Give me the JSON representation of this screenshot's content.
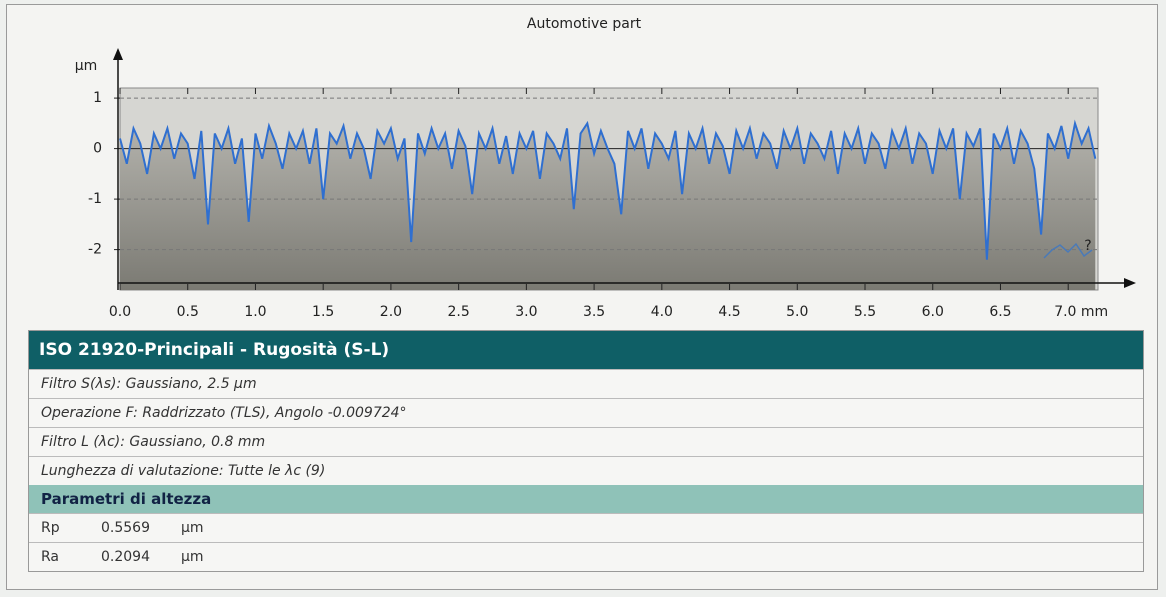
{
  "chart_data": {
    "type": "line",
    "title": "Automotive part",
    "y_label": "µm",
    "help_icon": "?",
    "x": [
      0,
      0.05,
      0.1,
      0.15,
      0.2,
      0.25,
      0.3,
      0.35,
      0.4,
      0.45,
      0.5,
      0.55,
      0.6,
      0.65,
      0.7,
      0.75,
      0.8,
      0.85,
      0.9,
      0.95,
      1,
      1.05,
      1.1,
      1.15,
      1.2,
      1.25,
      1.3,
      1.35,
      1.4,
      1.45,
      1.5,
      1.55,
      1.6,
      1.65,
      1.7,
      1.75,
      1.8,
      1.85,
      1.9,
      1.95,
      2,
      2.05,
      2.1,
      2.15,
      2.2,
      2.25,
      2.3,
      2.35,
      2.4,
      2.45,
      2.5,
      2.55,
      2.6,
      2.65,
      2.7,
      2.75,
      2.8,
      2.85,
      2.9,
      2.95,
      3,
      3.05,
      3.1,
      3.15,
      3.2,
      3.25,
      3.3,
      3.35,
      3.4,
      3.45,
      3.5,
      3.55,
      3.6,
      3.65,
      3.7,
      3.75,
      3.8,
      3.85,
      3.9,
      3.95,
      4,
      4.05,
      4.1,
      4.15,
      4.2,
      4.25,
      4.3,
      4.35,
      4.4,
      4.45,
      4.5,
      4.55,
      4.6,
      4.65,
      4.7,
      4.75,
      4.8,
      4.85,
      4.9,
      4.95,
      5,
      5.05,
      5.1,
      5.15,
      5.2,
      5.25,
      5.3,
      5.35,
      5.4,
      5.45,
      5.5,
      5.55,
      5.6,
      5.65,
      5.7,
      5.75,
      5.8,
      5.85,
      5.9,
      5.95,
      6,
      6.05,
      6.1,
      6.15,
      6.2,
      6.25,
      6.3,
      6.35,
      6.4,
      6.45,
      6.5,
      6.55,
      6.6,
      6.65,
      6.7,
      6.75,
      6.8,
      6.85,
      6.9,
      6.95,
      7,
      7.05,
      7.1,
      7.15,
      7.2
    ],
    "values": [
      0.2,
      -0.3,
      0.4,
      0.1,
      -0.5,
      0.3,
      0,
      0.4,
      -0.2,
      0.3,
      0.1,
      -0.6,
      0.35,
      -1.5,
      0.3,
      0,
      0.4,
      -0.3,
      0.2,
      -1.45,
      0.3,
      -0.2,
      0.45,
      0.1,
      -0.4,
      0.3,
      0,
      0.35,
      -0.3,
      0.4,
      -1,
      0.3,
      0.1,
      0.45,
      -0.2,
      0.3,
      0,
      -0.6,
      0.35,
      0.1,
      0.4,
      -0.2,
      0.2,
      -1.85,
      0.3,
      -0.1,
      0.4,
      0,
      0.3,
      -0.4,
      0.35,
      0.05,
      -0.9,
      0.3,
      0,
      0.4,
      -0.3,
      0.25,
      -0.5,
      0.3,
      0,
      0.35,
      -0.6,
      0.3,
      0.1,
      -0.2,
      0.4,
      -1.2,
      0.3,
      0.5,
      -0.1,
      0.35,
      0,
      -0.3,
      -1.3,
      0.35,
      0,
      0.4,
      -0.4,
      0.3,
      0.1,
      -0.2,
      0.35,
      -0.9,
      0.3,
      0,
      0.4,
      -0.3,
      0.3,
      0.05,
      -0.5,
      0.35,
      0,
      0.4,
      -0.2,
      0.3,
      0.1,
      -0.4,
      0.35,
      0,
      0.4,
      -0.3,
      0.3,
      0.1,
      -0.2,
      0.35,
      -0.5,
      0.3,
      0,
      0.4,
      -0.3,
      0.3,
      0.1,
      -0.4,
      0.35,
      0,
      0.4,
      -0.3,
      0.3,
      0.1,
      -0.5,
      0.35,
      0,
      0.4,
      -1,
      0.3,
      0.05,
      0.4,
      -2.2,
      0.3,
      0,
      0.4,
      -0.3,
      0.35,
      0.1,
      -0.4,
      -1.7,
      0.3,
      0,
      0.45,
      -0.2,
      0.5,
      0.1,
      0.4,
      -0.2
    ],
    "color": "#2f6fd0",
    "xlim": [
      0,
      7.22
    ],
    "ylim": [
      -2.8,
      1.2
    ],
    "xticks": [
      {
        "value": 0,
        "label": "0.0"
      },
      0.5,
      {
        "value": 1,
        "label": "1.0"
      },
      1.5,
      {
        "value": 2,
        "label": "2.0"
      },
      2.5,
      {
        "value": 3,
        "label": "3.0"
      },
      3.5,
      {
        "value": 4,
        "label": "4.0"
      },
      4.5,
      {
        "value": 5,
        "label": "5.0"
      },
      5.5,
      {
        "value": 6,
        "label": "6.0"
      },
      6.5,
      {
        "value": 7,
        "label": "7.0 mm"
      }
    ],
    "yticks": [
      1,
      0,
      -1,
      -2
    ],
    "grid": true
  },
  "panel": {
    "title": "ISO 21920-Principali - Rugosità (S-L)",
    "rows": [
      "Filtro S(λs): Gaussiano, 2.5 µm",
      "Operazione F: Raddrizzato (TLS), Angolo -0.009724°",
      "Filtro L (λc): Gaussiano, 0.8 mm",
      "Lunghezza di valutazione: Tutte le λc (9)"
    ],
    "section": "Parametri di altezza",
    "params": [
      [
        "Rp",
        "0.5569",
        "µm"
      ],
      [
        "Ra",
        "0.2094",
        "µm"
      ]
    ]
  }
}
